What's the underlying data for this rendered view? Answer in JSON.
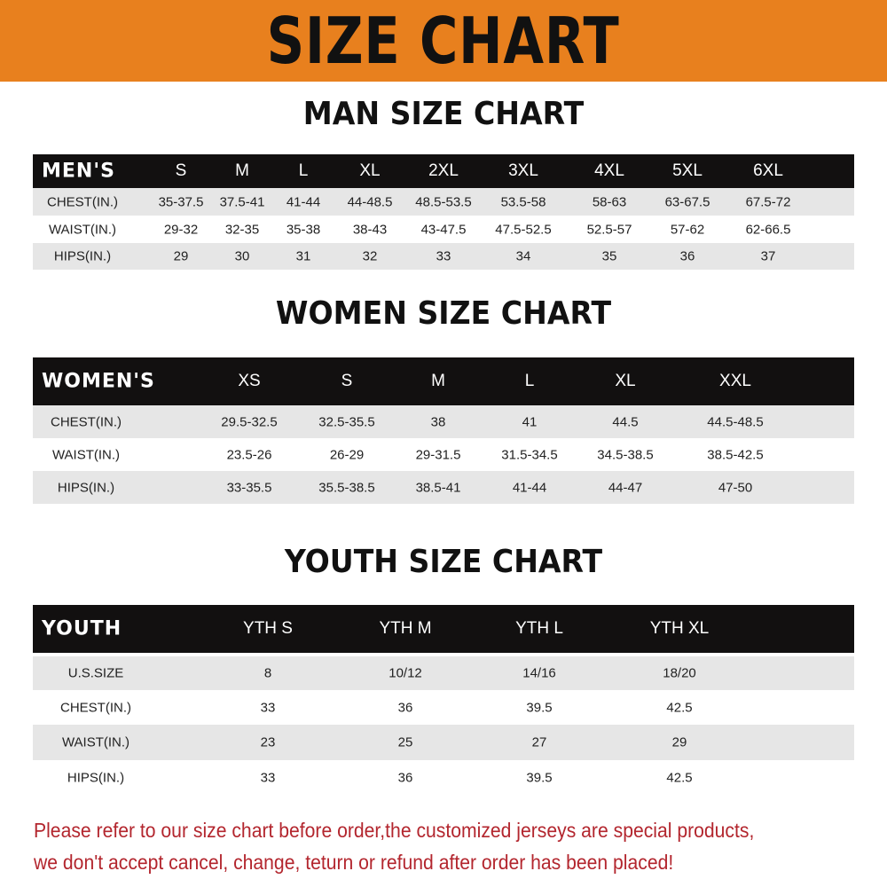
{
  "title": "SIZE CHART",
  "banner_color": "#e8801e",
  "men": {
    "title": "MAN SIZE CHART",
    "header": [
      "MEN'S",
      "S",
      "M",
      "L",
      "XL",
      "2XL",
      "3XL",
      "4XL",
      "5XL",
      "6XL"
    ],
    "rows": [
      [
        "CHEST(IN.)",
        "35-37.5",
        "37.5-41",
        "41-44",
        "44-48.5",
        "48.5-53.5",
        "53.5-58",
        "58-63",
        "63-67.5",
        "67.5-72"
      ],
      [
        "WAIST(IN.)",
        "29-32",
        "32-35",
        "35-38",
        "38-43",
        "43-47.5",
        "47.5-52.5",
        "52.5-57",
        "57-62",
        "62-66.5"
      ],
      [
        "HIPS(IN.)",
        "29",
        "30",
        "31",
        "32",
        "33",
        "34",
        "35",
        "36",
        "37"
      ]
    ]
  },
  "women": {
    "title": "WOMEN SIZE CHART",
    "header": [
      "WOMEN'S",
      "XS",
      "S",
      "M",
      "L",
      "XL",
      "XXL"
    ],
    "rows": [
      [
        "CHEST(IN.)",
        "29.5-32.5",
        "32.5-35.5",
        "38",
        "41",
        "44.5",
        "44.5-48.5"
      ],
      [
        "WAIST(IN.)",
        "23.5-26",
        "26-29",
        "29-31.5",
        "31.5-34.5",
        "34.5-38.5",
        "38.5-42.5"
      ],
      [
        "HIPS(IN.)",
        "33-35.5",
        "35.5-38.5",
        "38.5-41",
        "41-44",
        "44-47",
        "47-50"
      ]
    ]
  },
  "youth": {
    "title": "YOUTH SIZE CHART",
    "header": [
      "YOUTH",
      "YTH S",
      "YTH M",
      "YTH L",
      "YTH XL"
    ],
    "rows": [
      [
        "U.S.SIZE",
        "8",
        "10/12",
        "14/16",
        "18/20"
      ],
      [
        "CHEST(IN.)",
        "33",
        "36",
        "39.5",
        "42.5"
      ],
      [
        "WAIST(IN.)",
        "23",
        "25",
        "27",
        "29"
      ],
      [
        "HIPS(IN.)",
        "33",
        "36",
        "39.5",
        "42.5"
      ]
    ]
  },
  "footer": {
    "line1": "Please refer to our size chart before order,the customized jerseys are special products,",
    "line2": "we don't accept cancel, change, teturn or refund after order has been placed!",
    "color": "#b3262e"
  }
}
